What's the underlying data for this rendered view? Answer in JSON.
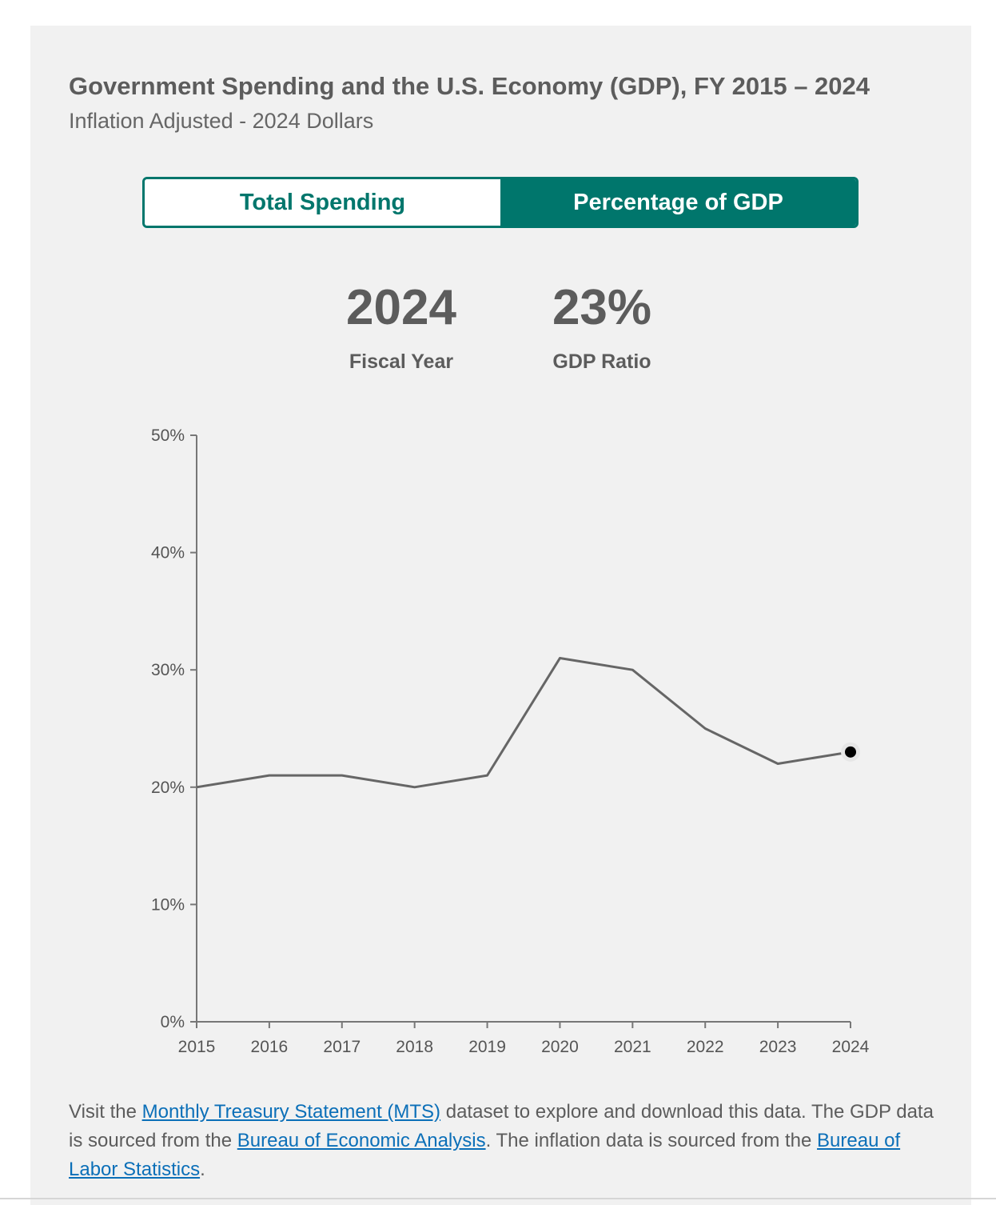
{
  "header": {
    "title": "Government Spending and the U.S. Economy (GDP), FY 2015 – 2024",
    "subtitle": "Inflation Adjusted - 2024 Dollars"
  },
  "toggle": {
    "total_label": "Total Spending",
    "percentage_label": "Percentage of GDP",
    "selected": "Percentage of GDP"
  },
  "stats": {
    "fiscal_year_value": "2024",
    "fiscal_year_label": "Fiscal Year",
    "gdp_ratio_value": "23%",
    "gdp_ratio_label": "GDP Ratio"
  },
  "chart_data": {
    "type": "line",
    "x": [
      2015,
      2016,
      2017,
      2018,
      2019,
      2020,
      2021,
      2022,
      2023,
      2024
    ],
    "series": [
      {
        "values": [
          20,
          21,
          21,
          20,
          21,
          31,
          30,
          25,
          22,
          23
        ]
      }
    ],
    "y_ticks": [
      "0%",
      "10%",
      "20%",
      "30%",
      "40%",
      "50%"
    ],
    "ylim": [
      0,
      50
    ],
    "grid": false,
    "highlight_x": 2024,
    "line_color": "#666666",
    "marker_color": "#000000"
  },
  "footer": {
    "t1": "Visit the ",
    "link_mts": "Monthly Treasury Statement (MTS)",
    "t2": " dataset to explore and download this data. The GDP data is sourced from the ",
    "link_bea": "Bureau of Economic Analysis",
    "t3": ". The inflation data is sourced from the ",
    "link_bls": "Bureau of Labor Statistics",
    "t4": "."
  }
}
